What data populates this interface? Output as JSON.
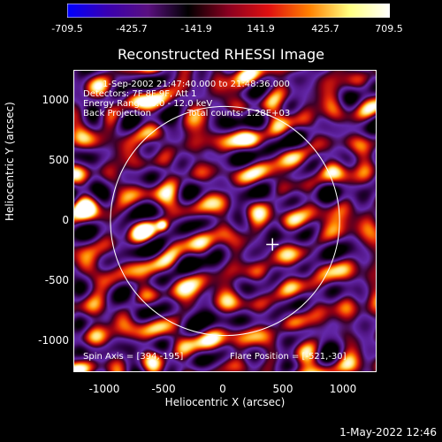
{
  "colorbar": {
    "ticks": [
      "-709.5",
      "-425.7",
      "-141.9",
      "141.9",
      "425.7",
      "709.5"
    ],
    "min": -709.5,
    "max": 709.5,
    "colors": [
      "#0000ff",
      "#3a00b0",
      "#5a1080",
      "#000000",
      "#8a0020",
      "#e01010",
      "#ff8000",
      "#ffff80",
      "#ffffff"
    ]
  },
  "title": "Reconstructed RHESSI Image",
  "annotations": {
    "time_range": "1-Sep-2002 21:47:40.000 to 21:48:36.000",
    "detectors": "Detectors: 7F 8F 9F, Att 1",
    "energy_range": "Energy Range: 6.0 - 12.0 keV",
    "method": "Back Projection",
    "total_counts": "Total counts: 1.28E+03",
    "spin_axis": "Spin Axis = [394,-195]",
    "flare_position": "Flare Position = [-521,-30]"
  },
  "axes": {
    "xlabel": "Heliocentric X (arcsec)",
    "ylabel": "Heliocentric Y (arcsec)",
    "xticks": [
      "-1000",
      "-500",
      "0",
      "500",
      "1000"
    ],
    "yticks": [
      "1000",
      "500",
      "0",
      "-500",
      "-1000"
    ],
    "xlim": [
      -1250,
      1250
    ],
    "ylim": [
      -1250,
      1250
    ]
  },
  "image": {
    "solar_limb_radius_arcsec": 950,
    "marker_position_arcsec": [
      394,
      -195
    ],
    "bright_source_arcsec": [
      -521,
      -30
    ],
    "limb_color": "#ffffff"
  },
  "timestamp": "1-May-2022 12:46"
}
